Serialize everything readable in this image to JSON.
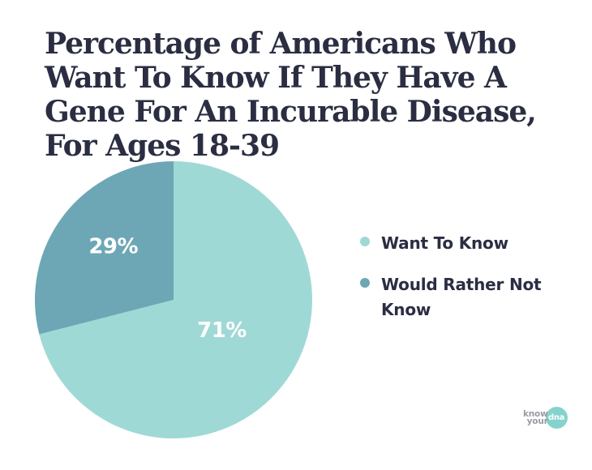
{
  "page": {
    "background": "#ffffff"
  },
  "title": {
    "lines": [
      "Percentage of Americans Who",
      "Want To Know If They Have A",
      "Gene For An Incurable Disease,",
      "For Ages 18-39"
    ],
    "color": "#2b2e42"
  },
  "chart_data": {
    "type": "pie",
    "title": "Percentage of Americans Who Want To Know If They Have A Gene For An Incurable Disease, For Ages 18-39",
    "labels": [
      "Want To Know",
      "Would Rather Not Know"
    ],
    "values": [
      71,
      29
    ],
    "value_labels": [
      "71%",
      "29%"
    ],
    "colors": [
      "#9fd9d6",
      "#6da7b5"
    ],
    "value_label_color": "#ffffff",
    "start_angle": "top",
    "direction": "clockwise",
    "legend_position": "right"
  },
  "legend": {
    "text_color": "#2b2e42"
  },
  "logo": {
    "line1": "know",
    "line2": "your",
    "circle_text": "dna",
    "text_color": "#9b9aa5",
    "circle_color": "#84d3cd"
  }
}
